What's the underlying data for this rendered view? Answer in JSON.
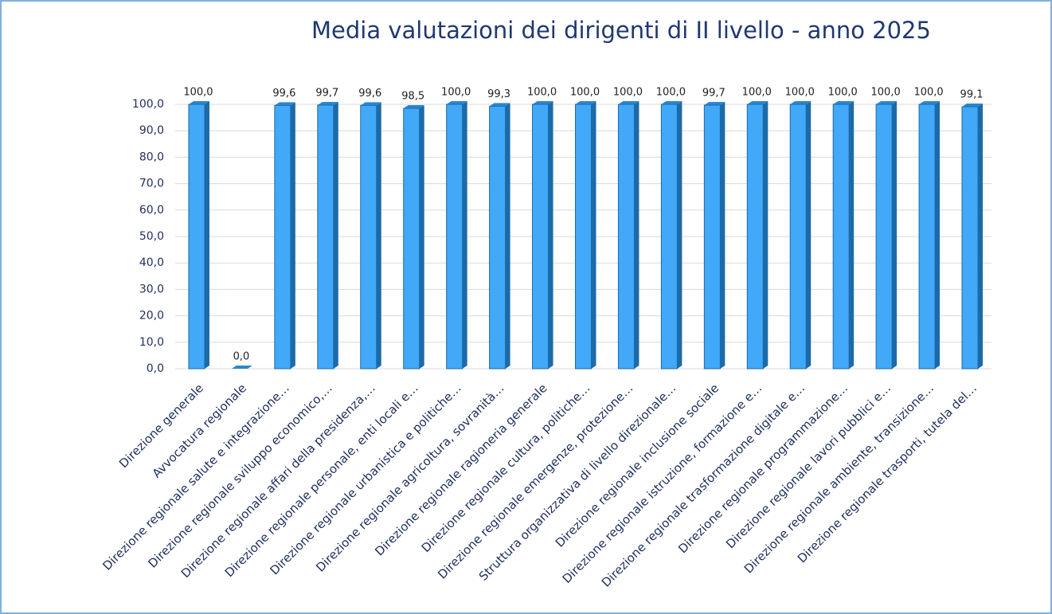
{
  "chart_data": {
    "type": "bar3d",
    "title": "Media valutazioni dei dirigenti di II livello - anno 2025",
    "categories": [
      "Direzione generale",
      "Avvocatura regionale",
      "Direzione regionale salute e integrazione…",
      "Direzione regionale sviluppo economico,…",
      "Direzione regionale affari della presidenza,…",
      "Direzione regionale personale, enti locali e…",
      "Direzione regionale urbanistica e politiche…",
      "Direzione regionale agricoltura, sovranità…",
      "Direzione regionale ragioneria generale",
      "Direzione regionale cultura, politiche…",
      "Direzione regionale emergenze, protezione…",
      "Struttura organizzativa di livello direzionale…",
      "Direzione regionale inclusione sociale",
      "Direzione regionale istruzione, formazione e…",
      "Direzione regionale trasformazione digitale e…",
      "Direzione regionale programmazione…",
      "Direzione regionale lavori pubblici e…",
      "Direzione regionale ambiente, transizione…",
      "Direzione regionale trasporti, tutela del…"
    ],
    "values": [
      100.0,
      0.0,
      99.6,
      99.7,
      99.6,
      98.5,
      100.0,
      99.3,
      100.0,
      100.0,
      100.0,
      100.0,
      99.7,
      100.0,
      100.0,
      100.0,
      100.0,
      100.0,
      99.1
    ],
    "value_labels": [
      "100,0",
      "0,0",
      "99,6",
      "99,7",
      "99,6",
      "98,5",
      "100,0",
      "99,3",
      "100,0",
      "100,0",
      "100,0",
      "100,0",
      "99,7",
      "100,0",
      "100,0",
      "100,0",
      "100,0",
      "100,0",
      "99,1"
    ],
    "color": "#42a8f8",
    "ylim": [
      0,
      100
    ],
    "yticks": [
      {
        "value": 0,
        "label": "0,0"
      },
      {
        "value": 10,
        "label": "10,0"
      },
      {
        "value": 20,
        "label": "20,0"
      },
      {
        "value": 30,
        "label": "30,0"
      },
      {
        "value": 40,
        "label": "40,0"
      },
      {
        "value": 50,
        "label": "50,0"
      },
      {
        "value": 60,
        "label": "60,0"
      },
      {
        "value": 70,
        "label": "70,0"
      },
      {
        "value": 80,
        "label": "80,0"
      },
      {
        "value": 90,
        "label": "90,0"
      },
      {
        "value": 100,
        "label": "100,0"
      }
    ],
    "grid": true
  }
}
